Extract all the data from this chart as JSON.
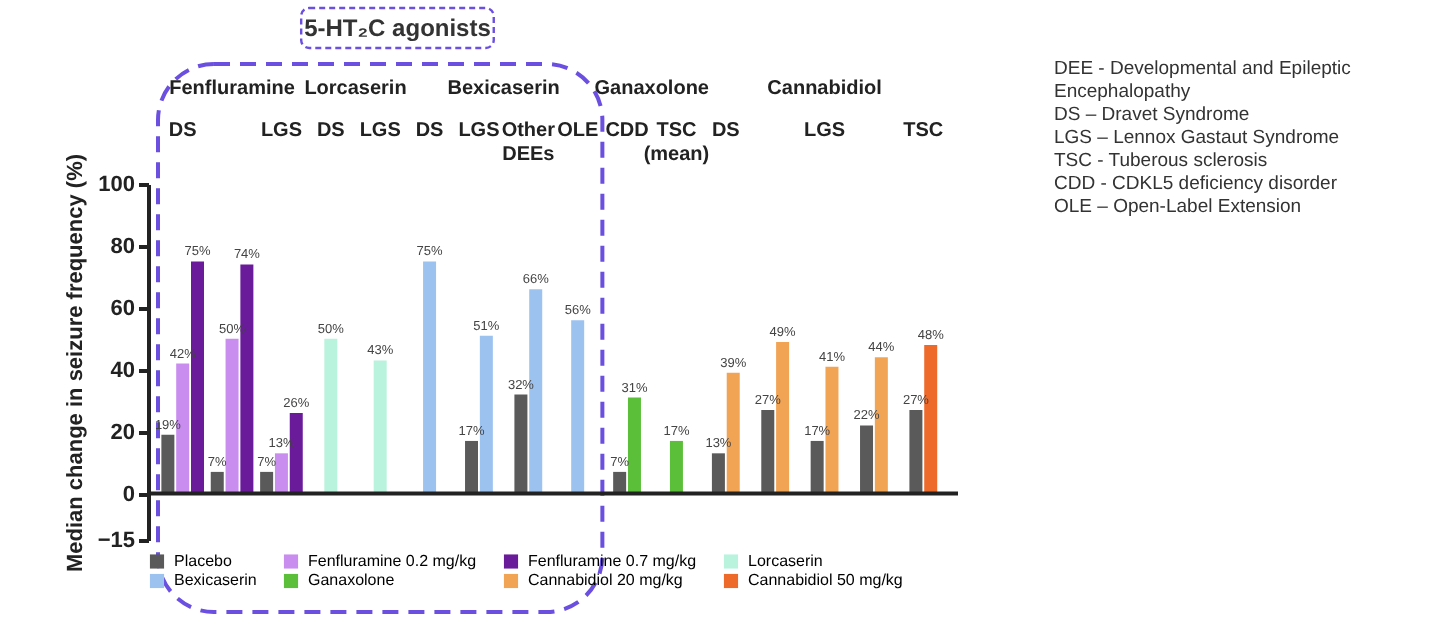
{
  "chart_data": {
    "type": "bar",
    "ylabel": "Median change in seizure frequency (%)",
    "categories": [
      "DS",
      null,
      "LGS",
      "DS",
      "LGS",
      "DS",
      "LGS",
      "Other DEEs",
      "OLE",
      "CDD",
      "TSC (mean)",
      "DS",
      null,
      "LGS",
      null,
      "TSC"
    ],
    "series": [
      {
        "name": "Placebo",
        "color": "#5a5a5a",
        "values": [
          19,
          7,
          7,
          null,
          null,
          null,
          17,
          32,
          null,
          7,
          null,
          13,
          27,
          17,
          22,
          27
        ],
        "value_labels": [
          "19%",
          "7%",
          "7%",
          null,
          null,
          null,
          "17%",
          "32%",
          null,
          "7%",
          null,
          "13%",
          "27%",
          "17%",
          "22%",
          "27%"
        ]
      },
      {
        "name": "Fenfluramine 0.2 mg/kg",
        "color": "#c98df0",
        "values": [
          42,
          50,
          13,
          null,
          null,
          null,
          null,
          null,
          null,
          null,
          null,
          null,
          null,
          null,
          null,
          null
        ],
        "value_labels": [
          "42%",
          "50%",
          "13%",
          null,
          null,
          null,
          null,
          null,
          null,
          null,
          null,
          null,
          null,
          null,
          null,
          null
        ]
      },
      {
        "name": "Fenfluramine 0.7 mg/kg",
        "color": "#6a1b9a",
        "values": [
          75,
          74,
          26,
          null,
          null,
          null,
          null,
          null,
          null,
          null,
          null,
          null,
          null,
          null,
          null,
          null
        ],
        "value_labels": [
          "75%",
          "74%",
          "26%",
          null,
          null,
          null,
          null,
          null,
          null,
          null,
          null,
          null,
          null,
          null,
          null,
          null
        ]
      },
      {
        "name": "Lorcaserin",
        "color": "#b9f2dd",
        "values": [
          null,
          null,
          null,
          50,
          43,
          null,
          null,
          null,
          null,
          null,
          null,
          null,
          null,
          null,
          null,
          null
        ],
        "value_labels": [
          null,
          null,
          null,
          "50%",
          "43%",
          null,
          null,
          null,
          null,
          null,
          null,
          null,
          null,
          null,
          null,
          null
        ]
      },
      {
        "name": "Bexicaserin",
        "color": "#9cc2f0",
        "values": [
          null,
          null,
          null,
          null,
          null,
          75,
          51,
          66,
          56,
          null,
          null,
          null,
          null,
          null,
          null,
          null
        ],
        "value_labels": [
          null,
          null,
          null,
          null,
          null,
          "75%",
          "51%",
          "66%",
          "56%",
          null,
          null,
          null,
          null,
          null,
          null,
          null
        ]
      },
      {
        "name": "Ganaxolone",
        "color": "#5cbf3a",
        "values": [
          null,
          null,
          null,
          null,
          null,
          null,
          null,
          null,
          null,
          31,
          17,
          null,
          null,
          null,
          null,
          null
        ],
        "value_labels": [
          null,
          null,
          null,
          null,
          null,
          null,
          null,
          null,
          null,
          "31%",
          "17%",
          null,
          null,
          null,
          null,
          null
        ]
      },
      {
        "name": "Cannabidiol 20 mg/kg",
        "color": "#f2a455",
        "values": [
          null,
          null,
          null,
          null,
          null,
          null,
          null,
          null,
          null,
          null,
          null,
          39,
          49,
          41,
          44,
          null
        ],
        "value_labels": [
          null,
          null,
          null,
          null,
          null,
          null,
          null,
          null,
          null,
          null,
          null,
          "39%",
          "49%",
          "41%",
          "44%",
          null
        ]
      },
      {
        "name": "Cannabidiol 50 mg/kg",
        "color": "#ee6a2a",
        "values": [
          null,
          null,
          null,
          null,
          null,
          null,
          null,
          null,
          null,
          null,
          null,
          null,
          null,
          null,
          null,
          48
        ],
        "value_labels": [
          null,
          null,
          null,
          null,
          null,
          null,
          null,
          null,
          null,
          null,
          null,
          null,
          null,
          null,
          null,
          "48%"
        ]
      }
    ],
    "ylim": [
      -15,
      100
    ],
    "yticks": [
      -15,
      0,
      20,
      40,
      60,
      80,
      100
    ],
    "ref_lines": [
      {
        "axis": "y",
        "value": 0,
        "color": "#222222"
      }
    ],
    "annotations": [
      "Fenfluramine",
      "Lorcaserin",
      "Bexicaserin",
      "Ganaxolone",
      "Cannabidiol",
      "5-HT₂C agonists",
      "DEE - Developmental and Epileptic",
      "Encephalopathy",
      "DS – Dravet Syndrome",
      "LGS – Lennox Gastaut Syndrome",
      "TSC - Tuberous sclerosis",
      "CDD - CDKL5 deficiency disorder",
      "OLE – Open-Label Extension"
    ],
    "grid": false,
    "legend": "bottom"
  }
}
